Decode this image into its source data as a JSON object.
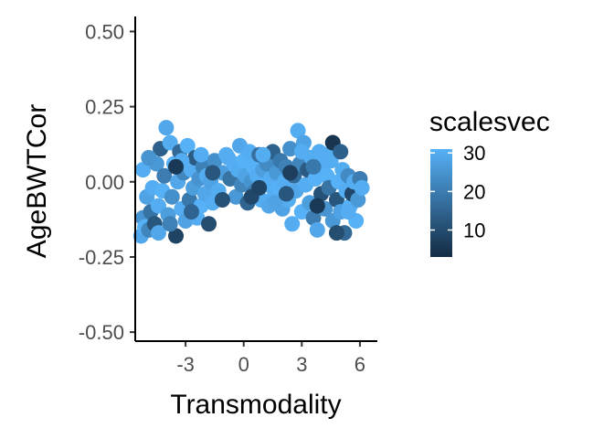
{
  "chart_data": {
    "type": "scatter",
    "title": "",
    "xlabel": "Transmodality",
    "ylabel": "AgeBWTCor",
    "xlim": [
      -5.6,
      6.9
    ],
    "ylim": [
      -0.53,
      0.55
    ],
    "x_ticks": [
      -3,
      0,
      3,
      6
    ],
    "x_tick_labels": [
      "-3",
      "0",
      "3",
      "6"
    ],
    "y_ticks": [
      0.5,
      0.25,
      0.0,
      -0.25,
      -0.5
    ],
    "y_tick_labels": [
      "0.50",
      "0.25",
      "0.00",
      "-0.25",
      "-0.50"
    ],
    "grid": false,
    "legend": {
      "title": "scalesvec",
      "placement": "right",
      "labels": [
        "30",
        "20",
        "10"
      ],
      "ticks": [
        30,
        20,
        10
      ],
      "range": [
        3,
        31
      ],
      "color_low": "#132B43",
      "color_high": "#56B1F7"
    },
    "points": [
      [
        -5.3,
        -0.18,
        29
      ],
      [
        -5.2,
        -0.12,
        25
      ],
      [
        -5.1,
        -0.15,
        31
      ],
      [
        -5.0,
        -0.05,
        28
      ],
      [
        -4.9,
        -0.16,
        22
      ],
      [
        -5.2,
        0.04,
        30
      ],
      [
        -4.8,
        -0.1,
        18
      ],
      [
        -4.7,
        -0.02,
        30
      ],
      [
        -4.6,
        -0.14,
        12
      ],
      [
        -4.5,
        0.06,
        26
      ],
      [
        -4.4,
        -0.08,
        30
      ],
      [
        -4.3,
        0.11,
        14
      ],
      [
        -4.2,
        -0.03,
        31
      ],
      [
        -4.1,
        0.02,
        20
      ],
      [
        -4.0,
        0.18,
        29
      ],
      [
        -3.9,
        -0.11,
        27
      ],
      [
        -3.8,
        0.13,
        30
      ],
      [
        -3.7,
        -0.05,
        24
      ],
      [
        -3.6,
        0.06,
        31
      ],
      [
        -3.5,
        -0.18,
        8
      ],
      [
        -3.4,
        0.0,
        29
      ],
      [
        -3.3,
        0.1,
        16
      ],
      [
        -3.2,
        -0.09,
        30
      ],
      [
        -3.1,
        0.03,
        22
      ],
      [
        -3.0,
        -0.13,
        28
      ],
      [
        -2.9,
        0.12,
        31
      ],
      [
        -2.8,
        -0.06,
        19
      ],
      [
        -2.7,
        0.04,
        30
      ],
      [
        -2.6,
        -0.02,
        27
      ],
      [
        -2.5,
        0.08,
        13
      ],
      [
        -2.4,
        -0.12,
        30
      ],
      [
        -2.3,
        0.01,
        25
      ],
      [
        -2.2,
        -0.08,
        31
      ],
      [
        -2.1,
        0.05,
        21
      ],
      [
        -2.0,
        -0.04,
        29
      ],
      [
        -1.9,
        0.02,
        30
      ],
      [
        -1.8,
        -0.14,
        10
      ],
      [
        -1.7,
        0.0,
        28
      ],
      [
        -1.6,
        -0.07,
        30
      ],
      [
        -1.5,
        0.07,
        24
      ],
      [
        -1.3,
        -0.03,
        30
      ],
      [
        -1.1,
        0.03,
        27
      ],
      [
        -0.9,
        0.09,
        30
      ],
      [
        -0.7,
        0.01,
        18
      ],
      [
        -0.5,
        0.06,
        31
      ],
      [
        -0.4,
        -0.05,
        26
      ],
      [
        -0.3,
        0.04,
        30
      ],
      [
        -0.2,
        0.12,
        29
      ],
      [
        -0.1,
        -0.01,
        22
      ],
      [
        0.0,
        0.07,
        31
      ],
      [
        0.1,
        0.02,
        28
      ],
      [
        0.2,
        -0.07,
        15
      ],
      [
        0.3,
        0.1,
        30
      ],
      [
        0.4,
        0.0,
        25
      ],
      [
        0.5,
        0.05,
        31
      ],
      [
        0.6,
        -0.03,
        20
      ],
      [
        0.7,
        0.02,
        30
      ],
      [
        0.8,
        0.09,
        17
      ],
      [
        0.9,
        -0.06,
        30
      ],
      [
        1.0,
        0.04,
        27
      ],
      [
        1.1,
        -0.01,
        31
      ],
      [
        1.2,
        0.06,
        23
      ],
      [
        1.3,
        -0.08,
        29
      ],
      [
        1.4,
        0.01,
        30
      ],
      [
        1.5,
        0.1,
        14
      ],
      [
        1.6,
        -0.04,
        30
      ],
      [
        1.7,
        0.03,
        26
      ],
      [
        1.8,
        -0.02,
        31
      ],
      [
        1.9,
        0.07,
        19
      ],
      [
        2.0,
        -0.09,
        28
      ],
      [
        2.1,
        0.0,
        30
      ],
      [
        2.2,
        0.05,
        21
      ],
      [
        2.3,
        -0.06,
        30
      ],
      [
        2.4,
        0.11,
        24
      ],
      [
        2.5,
        -0.14,
        30
      ],
      [
        2.6,
        0.02,
        16
      ],
      [
        2.7,
        -0.03,
        29
      ],
      [
        2.8,
        0.17,
        30
      ],
      [
        2.9,
        0.06,
        22
      ],
      [
        3.0,
        -0.1,
        31
      ],
      [
        3.1,
        0.13,
        28
      ],
      [
        3.2,
        -0.01,
        30
      ],
      [
        3.3,
        0.04,
        13
      ],
      [
        3.4,
        -0.07,
        27
      ],
      [
        3.5,
        0.08,
        30
      ],
      [
        3.6,
        -0.12,
        20
      ],
      [
        3.7,
        0.01,
        31
      ],
      [
        3.8,
        -0.16,
        29
      ],
      [
        3.9,
        0.1,
        30
      ],
      [
        4.0,
        -0.04,
        11
      ],
      [
        4.1,
        0.05,
        30
      ],
      [
        4.2,
        -0.09,
        25
      ],
      [
        4.3,
        0.02,
        31
      ],
      [
        4.4,
        -0.02,
        18
      ],
      [
        4.5,
        0.07,
        30
      ],
      [
        4.6,
        -0.13,
        26
      ],
      [
        4.7,
        0.11,
        30
      ],
      [
        4.8,
        -0.06,
        12
      ],
      [
        4.9,
        0.0,
        31
      ],
      [
        5.0,
        -0.1,
        28
      ],
      [
        5.1,
        0.04,
        30
      ],
      [
        5.2,
        -0.17,
        16
      ],
      [
        5.3,
        -0.03,
        30
      ],
      [
        5.4,
        0.02,
        23
      ],
      [
        5.5,
        -0.08,
        31
      ],
      [
        5.6,
        -0.04,
        9
      ],
      [
        5.7,
        0.0,
        30
      ],
      [
        5.8,
        -0.13,
        31
      ],
      [
        5.9,
        -0.06,
        26
      ],
      [
        6.0,
        0.01,
        20
      ],
      [
        6.1,
        -0.02,
        30
      ],
      [
        -4.9,
        0.08,
        25
      ],
      [
        -4.4,
        -0.17,
        29
      ],
      [
        -3.8,
        -0.14,
        21
      ],
      [
        -3.2,
        0.07,
        30
      ],
      [
        -2.7,
        -0.1,
        15
      ],
      [
        -2.2,
        0.09,
        30
      ],
      [
        -1.6,
        0.03,
        12
      ],
      [
        -0.8,
        0.08,
        30
      ],
      [
        0.4,
        -0.05,
        9
      ],
      [
        1.0,
        0.09,
        30
      ],
      [
        1.6,
        -0.07,
        28
      ],
      [
        2.4,
        0.03,
        7
      ],
      [
        3.0,
        0.1,
        30
      ],
      [
        3.6,
        0.05,
        19
      ],
      [
        4.2,
        0.09,
        30
      ],
      [
        4.8,
        -0.17,
        10
      ],
      [
        5.4,
        -0.1,
        30
      ],
      [
        4.6,
        0.13,
        5
      ],
      [
        2.2,
        -0.04,
        12
      ],
      [
        -3.5,
        0.05,
        6
      ],
      [
        -1.1,
        -0.06,
        11
      ],
      [
        0.8,
        -0.02,
        8
      ],
      [
        5.0,
        0.1,
        14
      ],
      [
        3.8,
        -0.08,
        6
      ]
    ]
  }
}
